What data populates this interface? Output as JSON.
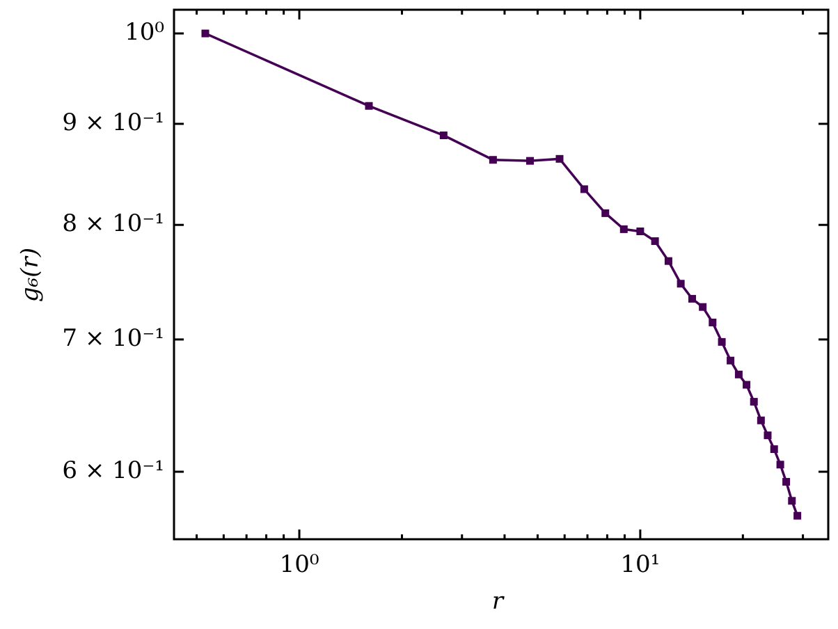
{
  "chart_data": {
    "type": "line",
    "x_label": "r",
    "y_label": "g₆(r)",
    "x": [
      0.53,
      1.6,
      2.65,
      3.7,
      4.75,
      5.8,
      6.85,
      7.9,
      8.95,
      10.0,
      11.05,
      12.1,
      13.15,
      14.2,
      15.25,
      16.3,
      17.35,
      18.4,
      19.45,
      20.5,
      21.55,
      22.6,
      23.65,
      24.7,
      25.75,
      26.8,
      27.85,
      28.9
    ],
    "series": [
      {
        "color": "#440154",
        "marker": "square",
        "values": [
          1.0,
          0.919,
          0.888,
          0.863,
          0.862,
          0.864,
          0.834,
          0.811,
          0.796,
          0.794,
          0.785,
          0.767,
          0.747,
          0.734,
          0.727,
          0.714,
          0.698,
          0.683,
          0.672,
          0.664,
          0.651,
          0.637,
          0.626,
          0.616,
          0.605,
          0.593,
          0.58,
          0.57
        ]
      }
    ],
    "xscale": "log",
    "yscale": "log",
    "xlim": [
      0.429,
      35.6
    ],
    "ylim": [
      0.5546,
      1.028
    ],
    "xticks": [
      {
        "value": 1,
        "label": "10⁰"
      },
      {
        "value": 10,
        "label": "10¹"
      }
    ],
    "xminorticks": [
      0.5,
      0.6,
      0.7,
      0.8,
      0.9,
      2,
      3,
      4,
      5,
      6,
      7,
      8,
      9,
      20,
      30
    ],
    "yticks": [
      {
        "value": 0.6,
        "label": "6 × 10⁻¹"
      },
      {
        "value": 0.7,
        "label": "7 × 10⁻¹"
      },
      {
        "value": 0.8,
        "label": "8 × 10⁻¹"
      },
      {
        "value": 0.9,
        "label": "9 × 10⁻¹"
      },
      {
        "value": 1,
        "label": "10⁰"
      }
    ],
    "grid": false
  }
}
